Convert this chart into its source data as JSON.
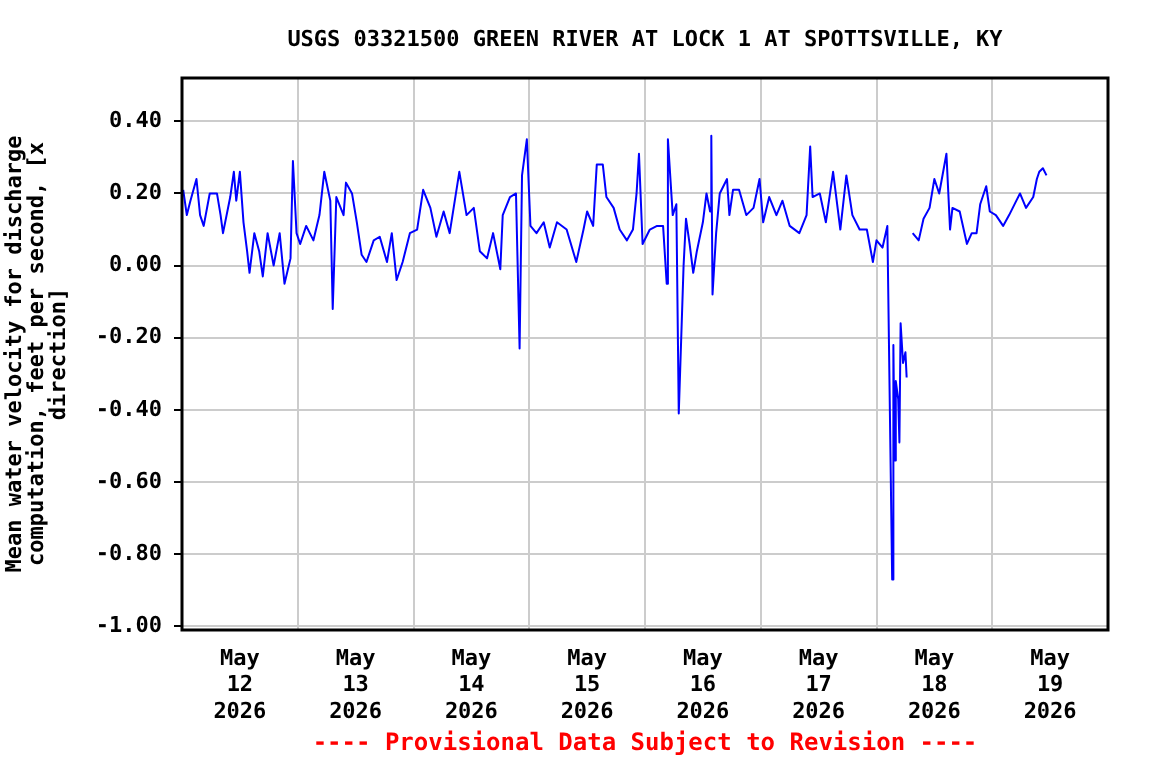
{
  "chart_data": {
    "type": "line",
    "title": "USGS 03321500 GREEN RIVER AT LOCK 1 AT SPOTTSVILLE, KY",
    "ylabel": "Mean water velocity for discharge computation, feet per second, [x direction]",
    "annotations": [
      "---- Provisional Data Subject to Revision ----"
    ],
    "xlim": [
      "2026-05-12T00:00",
      "2026-05-20T00:00"
    ],
    "xticks": [
      {
        "value": "2026-05-12T12:00",
        "label": "May 12 2026"
      },
      {
        "value": "2026-05-13T00:00",
        "label": null
      },
      {
        "value": "2026-05-13T12:00",
        "label": "May 13 2026"
      },
      {
        "value": "2026-05-14T00:00",
        "label": null
      },
      {
        "value": "2026-05-14T12:00",
        "label": "May 14 2026"
      },
      {
        "value": "2026-05-15T00:00",
        "label": null
      },
      {
        "value": "2026-05-15T12:00",
        "label": "May 15 2026"
      },
      {
        "value": "2026-05-16T00:00",
        "label": null
      },
      {
        "value": "2026-05-16T12:00",
        "label": "May 16 2026"
      },
      {
        "value": "2026-05-17T00:00",
        "label": null
      },
      {
        "value": "2026-05-17T12:00",
        "label": "May 17 2026"
      },
      {
        "value": "2026-05-18T00:00",
        "label": null
      },
      {
        "value": "2026-05-18T12:00",
        "label": "May 18 2026"
      },
      {
        "value": "2026-05-19T00:00",
        "label": null
      },
      {
        "value": "2026-05-19T12:00",
        "label": "May 19 2026"
      }
    ],
    "ylim": [
      -1.01,
      0.52
    ],
    "yticks": [
      {
        "value": 0.4,
        "label": "0.40"
      },
      {
        "value": 0.2,
        "label": "0.20"
      },
      {
        "value": 0,
        "label": "0.00"
      },
      {
        "value": -0.2,
        "label": "-0.20"
      },
      {
        "value": -0.4,
        "label": "-0.40"
      },
      {
        "value": -0.6,
        "label": "-0.60"
      },
      {
        "value": -0.8,
        "label": "-0.80"
      },
      {
        "value": -1,
        "label": "-1.00"
      }
    ],
    "grid": true,
    "series": [
      {
        "color": "#0000ff",
        "x": [
          "2026-05-12T00:15",
          "2026-05-12T01:00",
          "2026-05-12T01:45",
          "2026-05-12T03:00",
          "2026-05-12T03:45",
          "2026-05-12T04:30",
          "2026-05-12T05:45",
          "2026-05-12T07:15",
          "2026-05-12T08:00",
          "2026-05-12T08:30",
          "2026-05-12T10:00",
          "2026-05-12T10:45",
          "2026-05-12T11:15",
          "2026-05-12T12:00",
          "2026-05-12T12:45",
          "2026-05-12T13:30",
          "2026-05-12T14:00",
          "2026-05-12T15:00",
          "2026-05-12T16:00",
          "2026-05-12T16:45",
          "2026-05-12T17:45",
          "2026-05-12T19:00",
          "2026-05-12T20:15",
          "2026-05-12T21:15",
          "2026-05-12T22:30",
          "2026-05-12T23:00",
          "2026-05-12T23:45",
          "2026-05-13T00:30",
          "2026-05-13T01:45",
          "2026-05-13T03:15",
          "2026-05-13T04:30",
          "2026-05-13T05:30",
          "2026-05-13T06:45",
          "2026-05-13T07:15",
          "2026-05-13T08:00",
          "2026-05-13T09:30",
          "2026-05-13T10:00",
          "2026-05-13T11:15",
          "2026-05-13T12:15",
          "2026-05-13T13:15",
          "2026-05-13T14:15",
          "2026-05-13T15:45",
          "2026-05-13T17:00",
          "2026-05-13T18:30",
          "2026-05-13T19:30",
          "2026-05-13T20:30",
          "2026-05-13T21:45",
          "2026-05-13T23:15",
          "2026-05-14T00:45",
          "2026-05-14T02:00",
          "2026-05-14T03:30",
          "2026-05-14T04:45",
          "2026-05-14T06:15",
          "2026-05-14T07:30",
          "2026-05-14T09:30",
          "2026-05-14T11:00",
          "2026-05-14T12:30",
          "2026-05-14T13:45",
          "2026-05-14T15:15",
          "2026-05-14T16:30",
          "2026-05-14T18:00",
          "2026-05-14T18:30",
          "2026-05-14T20:00",
          "2026-05-14T21:15",
          "2026-05-14T22:00",
          "2026-05-14T22:30",
          "2026-05-14T23:30",
          "2026-05-15T00:15",
          "2026-05-15T01:30",
          "2026-05-15T03:00",
          "2026-05-15T04:15",
          "2026-05-15T05:45",
          "2026-05-15T07:45",
          "2026-05-15T09:45",
          "2026-05-15T11:15",
          "2026-05-15T12:00",
          "2026-05-15T13:15",
          "2026-05-15T14:00",
          "2026-05-15T15:15",
          "2026-05-15T16:00",
          "2026-05-15T17:30",
          "2026-05-15T18:45",
          "2026-05-15T20:15",
          "2026-05-15T21:30",
          "2026-05-15T22:15",
          "2026-05-15T22:45",
          "2026-05-15T23:30",
          "2026-05-16T01:00",
          "2026-05-16T02:30",
          "2026-05-16T03:45",
          "2026-05-16T04:30",
          "2026-05-16T04:45",
          "2026-05-16T05:45",
          "2026-05-16T06:30",
          "2026-05-16T07:00",
          "2026-05-16T08:00",
          "2026-05-16T08:30",
          "2026-05-16T09:15",
          "2026-05-16T10:00",
          "2026-05-16T10:45",
          "2026-05-16T12:00",
          "2026-05-16T12:45",
          "2026-05-16T13:30",
          "2026-05-16T13:45",
          "2026-05-16T14:00",
          "2026-05-16T14:45",
          "2026-05-16T15:30",
          "2026-05-16T17:00",
          "2026-05-16T17:30",
          "2026-05-16T18:15",
          "2026-05-16T19:30",
          "2026-05-16T21:00",
          "2026-05-16T22:30",
          "2026-05-16T23:45",
          "2026-05-17T00:30",
          "2026-05-17T01:45",
          "2026-05-17T03:15",
          "2026-05-17T04:30",
          "2026-05-17T06:00",
          "2026-05-17T08:00",
          "2026-05-17T09:30",
          "2026-05-17T10:15",
          "2026-05-17T10:45",
          "2026-05-17T12:15",
          "2026-05-17T13:30",
          "2026-05-17T15:00",
          "2026-05-17T16:30",
          "2026-05-17T17:45",
          "2026-05-17T19:00",
          "2026-05-17T20:30",
          "2026-05-17T22:00",
          "2026-05-17T23:15",
          "2026-05-18T00:00",
          "2026-05-18T01:15",
          "2026-05-18T02:15",
          "2026-05-18T03:15",
          "2026-05-18T03:30",
          "2026-05-18T03:45",
          "2026-05-18T04:00",
          "2026-05-18T04:30",
          "2026-05-18T04:45",
          "2026-05-18T05:00",
          "2026-05-18T05:30",
          "2026-05-18T06:00",
          "2026-05-18T06:15",
          "2026-05-18T07:00",
          "2026-05-18T07:30",
          "2026-05-18T08:45",
          "2026-05-18T09:45",
          "2026-05-18T11:00",
          "2026-05-18T12:00",
          "2026-05-18T13:00",
          "2026-05-18T14:30",
          "2026-05-18T15:15",
          "2026-05-18T15:45",
          "2026-05-18T17:15",
          "2026-05-18T18:45",
          "2026-05-18T19:45",
          "2026-05-18T20:45",
          "2026-05-18T21:30",
          "2026-05-18T22:45",
          "2026-05-18T23:30",
          "2026-05-19T00:45",
          "2026-05-19T02:15",
          "2026-05-19T03:30",
          "2026-05-19T05:00",
          "2026-05-19T05:45",
          "2026-05-19T07:00",
          "2026-05-19T08:30",
          "2026-05-19T09:15",
          "2026-05-19T09:45",
          "2026-05-19T10:30",
          "2026-05-19T11:15"
        ],
        "values": [
          0.21,
          0.14,
          0.18,
          0.24,
          0.14,
          0.11,
          0.2,
          0.2,
          0.14,
          0.09,
          0.19,
          0.26,
          0.18,
          0.26,
          0.12,
          0.04,
          -0.02,
          0.09,
          0.04,
          -0.03,
          0.09,
          0,
          0.09,
          -0.05,
          0.02,
          0.29,
          0.09,
          0.06,
          0.11,
          0.07,
          0.14,
          0.26,
          0.18,
          -0.12,
          0.19,
          0.14,
          0.23,
          0.2,
          0.12,
          0.03,
          0.01,
          0.07,
          0.08,
          0.01,
          0.09,
          -0.04,
          0.01,
          0.09,
          0.1,
          0.21,
          0.16,
          0.08,
          0.15,
          0.09,
          0.26,
          0.14,
          0.16,
          0.04,
          0.02,
          0.09,
          -0.01,
          0.14,
          0.19,
          0.2,
          -0.23,
          0.25,
          0.35,
          0.11,
          0.09,
          0.12,
          0.05,
          0.12,
          0.1,
          0.01,
          0.1,
          0.15,
          0.11,
          0.28,
          0.28,
          0.19,
          0.16,
          0.1,
          0.07,
          0.1,
          0.2,
          0.31,
          0.06,
          0.1,
          0.11,
          0.11,
          -0.05,
          0.35,
          0.14,
          0.17,
          -0.41,
          0,
          0.13,
          0.06,
          -0.02,
          0.04,
          0.12,
          0.2,
          0.15,
          0.36,
          -0.08,
          0.09,
          0.2,
          0.24,
          0.14,
          0.21,
          0.21,
          0.14,
          0.16,
          0.24,
          0.12,
          0.19,
          0.14,
          0.18,
          0.11,
          0.09,
          0.14,
          0.33,
          0.19,
          0.2,
          0.12,
          0.26,
          0.1,
          0.25,
          0.14,
          0.1,
          0.1,
          0.01,
          0.07,
          0.05,
          0.11,
          -0.87,
          -0.22,
          -0.54,
          -0.32,
          -0.37,
          -0.49,
          -0.16,
          -0.27,
          -0.24,
          -0.31,
          null,
          0.09,
          0.07,
          0.13,
          0.16,
          0.24,
          0.2,
          0.31,
          0.1,
          0.16,
          0.15,
          0.06,
          0.09,
          0.09,
          0.17,
          0.22,
          0.15,
          0.14,
          0.11,
          0.14,
          0.18,
          0.2,
          0.16,
          0.19,
          0.24,
          0.26,
          0.27,
          0.25
        ]
      }
    ]
  }
}
